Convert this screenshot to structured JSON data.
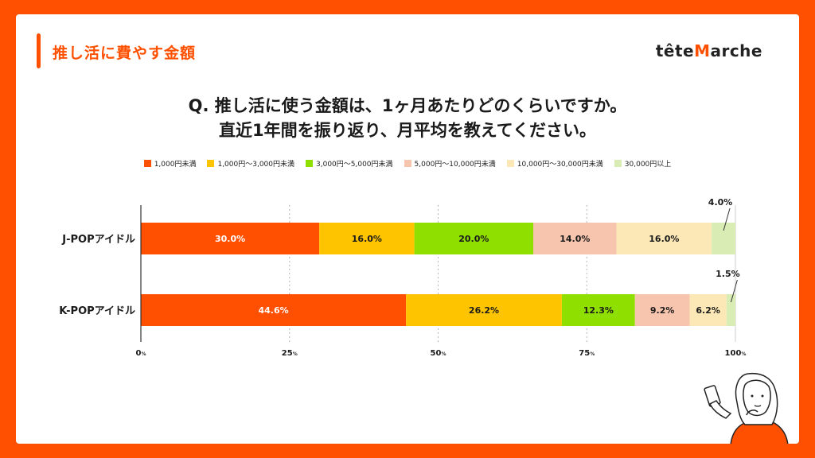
{
  "header": {
    "section_title": "推し活に費やす金額",
    "logo_left": "tête",
    "logo_m": "M",
    "logo_right": "arche"
  },
  "question": {
    "line1": "Q. 推し活に使う金額は、1ヶ月あたりどのくらいですか。",
    "line2": "直近1年間を振り返り、月平均を教えてください。"
  },
  "chart_data": {
    "type": "bar",
    "orientation": "horizontal-stacked-100",
    "categories": [
      "J-POPアイドル",
      "K-POPアイドル"
    ],
    "series": [
      {
        "name": "1,000円未満",
        "color": "#fe5000",
        "label_color": "#ffffff",
        "values": [
          30.0,
          44.6
        ]
      },
      {
        "name": "1,000円〜3,000円未満",
        "color": "#ffc400",
        "label_color": "#1a1a1a",
        "values": [
          16.0,
          26.2
        ]
      },
      {
        "name": "3,000円〜5,000円未満",
        "color": "#8fe000",
        "label_color": "#1a1a1a",
        "values": [
          20.0,
          12.3
        ]
      },
      {
        "name": "5,000円〜10,000円未満",
        "color": "#f7c4ae",
        "label_color": "#1a1a1a",
        "values": [
          14.0,
          9.2
        ]
      },
      {
        "name": "10,000円〜30,000円未満",
        "color": "#fbe8b6",
        "label_color": "#1a1a1a",
        "values": [
          16.0,
          6.2
        ]
      },
      {
        "name": "30,000円以上",
        "color": "#d8ecb4",
        "label_color": "#1a1a1a",
        "values": [
          4.0,
          1.5
        ]
      }
    ],
    "data_labels": [
      [
        "30.0%",
        "16.0%",
        "20.0%",
        "14.0%",
        "16.0%",
        "4.0%"
      ],
      [
        "44.6%",
        "26.2%",
        "12.3%",
        "9.2%",
        "6.2%",
        "1.5%"
      ]
    ],
    "callout_series_index": 5,
    "x_ticks": [
      {
        "value": 0,
        "num": "0",
        "unit": "%"
      },
      {
        "value": 25,
        "num": "25",
        "unit": "%"
      },
      {
        "value": 50,
        "num": "50",
        "unit": "%"
      },
      {
        "value": 75,
        "num": "75",
        "unit": "%"
      },
      {
        "value": 100,
        "num": "100",
        "unit": "%"
      }
    ],
    "xlim": [
      0,
      100
    ],
    "grid": "dotted-vertical",
    "legend_position": "top"
  }
}
